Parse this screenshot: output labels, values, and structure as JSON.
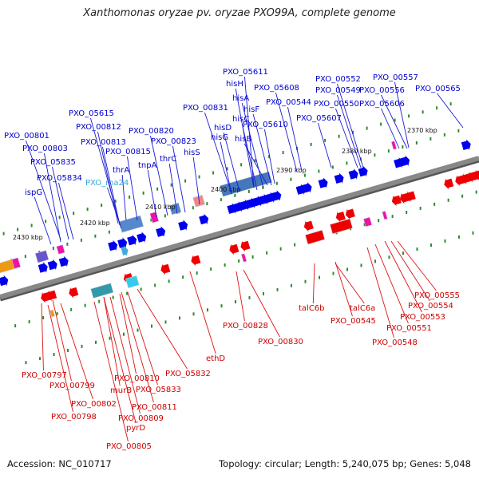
{
  "title": "Xanthomonas oryzae pv. oryzae PXO99A, complete genome",
  "accession": "Accession: NC_010717",
  "topology": "Topology: circular; Length: 5,240,075 bp; Genes: 5,048",
  "colors": {
    "forward": "#0000ee",
    "reverse": "#ee0000",
    "rna": "#44aadd",
    "backbone": "#888888",
    "tick": "#2e8b2e"
  },
  "ruler": [
    "2370 kbp",
    "2380 kbp",
    "2390 kbp",
    "2400 kbp",
    "2410 kbp",
    "2420 kbp",
    "2430 kbp"
  ],
  "top_labels": [
    {
      "text": "PXO_05611",
      "color": "#0000cc"
    },
    {
      "text": "hisH",
      "color": "#0000cc"
    },
    {
      "text": "PXO_00552",
      "color": "#0000cc"
    },
    {
      "text": "PXO_00557",
      "color": "#0000cc"
    },
    {
      "text": "PXO_05608",
      "color": "#0000cc"
    },
    {
      "text": "PXO_00549",
      "color": "#0000cc"
    },
    {
      "text": "PXO_00556",
      "color": "#0000cc"
    },
    {
      "text": "hisA",
      "color": "#0000cc"
    },
    {
      "text": "PXO_00544",
      "color": "#0000cc"
    },
    {
      "text": "PXO_00565",
      "color": "#0000cc"
    },
    {
      "text": "PXO_00831",
      "color": "#0000cc"
    },
    {
      "text": "hisF",
      "color": "#0000cc"
    },
    {
      "text": "PXO_00550",
      "color": "#0000cc"
    },
    {
      "text": "PXO_05606",
      "color": "#0000cc"
    },
    {
      "text": "PXO_05615",
      "color": "#0000cc"
    },
    {
      "text": "hisC",
      "color": "#0000cc"
    },
    {
      "text": "PXO_05607",
      "color": "#0000cc"
    },
    {
      "text": "PXO_00812",
      "color": "#0000cc"
    },
    {
      "text": "hisD",
      "color": "#0000cc"
    },
    {
      "text": "PXO_05610",
      "color": "#0000cc"
    },
    {
      "text": "PXO_00820",
      "color": "#0000cc"
    },
    {
      "text": "PXO_00801",
      "color": "#0000cc"
    },
    {
      "text": "hisG",
      "color": "#0000cc"
    },
    {
      "text": "hisB",
      "color": "#0000cc"
    },
    {
      "text": "PXO_00813",
      "color": "#0000cc"
    },
    {
      "text": "PXO_00823",
      "color": "#0000cc"
    },
    {
      "text": "PXO_00803",
      "color": "#0000cc"
    },
    {
      "text": "PXO_00815",
      "color": "#0000cc"
    },
    {
      "text": "hisS",
      "color": "#0000cc"
    },
    {
      "text": "PXO_05835",
      "color": "#0000cc"
    },
    {
      "text": "thrC",
      "color": "#0000cc"
    },
    {
      "text": "tnpA",
      "color": "#0000cc"
    },
    {
      "text": "thrA",
      "color": "#0000cc"
    },
    {
      "text": "PXO_05834",
      "color": "#0000cc"
    },
    {
      "text": "PXO_rna24",
      "color": "#33aadd"
    },
    {
      "text": "ispG",
      "color": "#0000cc"
    }
  ],
  "bottom_labels": [
    {
      "text": "talC6b",
      "color": "#cc0000"
    },
    {
      "text": "talC6a",
      "color": "#cc0000"
    },
    {
      "text": "PXO_00555",
      "color": "#cc0000"
    },
    {
      "text": "PXO_00554",
      "color": "#cc0000"
    },
    {
      "text": "PXO_00545",
      "color": "#cc0000"
    },
    {
      "text": "PXO_00553",
      "color": "#cc0000"
    },
    {
      "text": "PXO_00828",
      "color": "#cc0000"
    },
    {
      "text": "PXO_00551",
      "color": "#cc0000"
    },
    {
      "text": "PXO_00830",
      "color": "#cc0000"
    },
    {
      "text": "PXO_00548",
      "color": "#cc0000"
    },
    {
      "text": "ethD",
      "color": "#cc0000"
    },
    {
      "text": "PXO_00797",
      "color": "#cc0000"
    },
    {
      "text": "PXO_05832",
      "color": "#cc0000"
    },
    {
      "text": "PXO_00810",
      "color": "#cc0000"
    },
    {
      "text": "PXO_00799",
      "color": "#cc0000"
    },
    {
      "text": "murB",
      "color": "#cc0000"
    },
    {
      "text": "PXO_05833",
      "color": "#cc0000"
    },
    {
      "text": "PXO_00802",
      "color": "#cc0000"
    },
    {
      "text": "PXO_00811",
      "color": "#cc0000"
    },
    {
      "text": "PXO_00798",
      "color": "#cc0000"
    },
    {
      "text": "PXO_00809",
      "color": "#cc0000"
    },
    {
      "text": "pyrD",
      "color": "#cc0000"
    },
    {
      "text": "PXO_00805",
      "color": "#cc0000"
    }
  ]
}
